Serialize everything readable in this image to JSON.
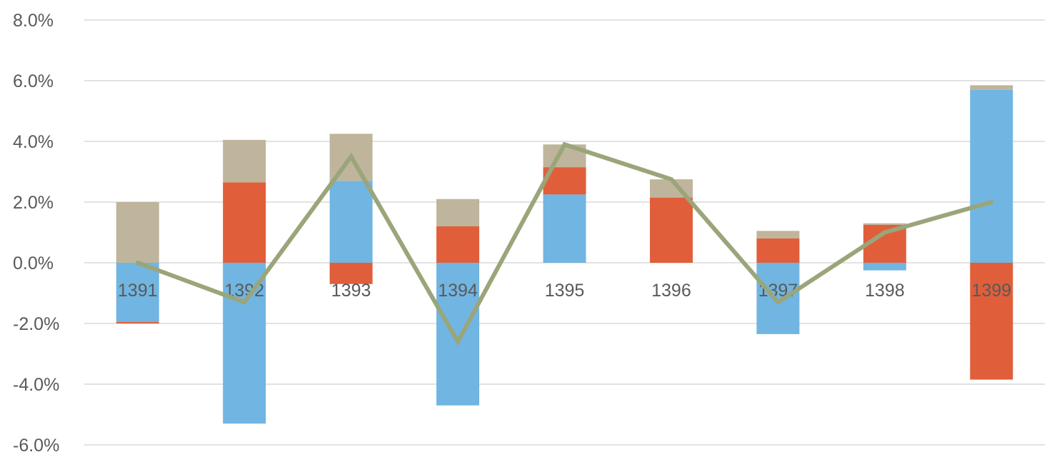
{
  "chart_data": {
    "type": "bar",
    "stacked": true,
    "categories": [
      "1391",
      "1392",
      "1393",
      "1394",
      "1395",
      "1396",
      "1397",
      "1398",
      "1399"
    ],
    "ylim": [
      -6.0,
      8.0
    ],
    "yticks": [
      -6.0,
      -4.0,
      -2.0,
      0.0,
      2.0,
      4.0,
      6.0,
      8.0
    ],
    "ytick_labels": [
      "-6.0%",
      "-4.0%",
      "-2.0%",
      "0.0%",
      "2.0%",
      "4.0%",
      "6.0%",
      "8.0%"
    ],
    "grid": true,
    "legend": "none",
    "series": [
      {
        "color": "#71b5e2",
        "values": [
          -1.95,
          -5.3,
          2.7,
          -4.7,
          2.25,
          0.0,
          -2.35,
          -0.25,
          5.7
        ]
      },
      {
        "color": "#e05f3a",
        "values": [
          -0.05,
          2.65,
          -0.7,
          1.2,
          0.9,
          2.15,
          0.8,
          1.25,
          -3.85
        ]
      },
      {
        "color": "#bfb59c",
        "values": [
          2.0,
          1.4,
          1.55,
          0.9,
          0.75,
          0.6,
          0.25,
          0.05,
          0.15
        ]
      }
    ],
    "line": {
      "color": "#9aa57a",
      "values": [
        0.0,
        -1.3,
        3.5,
        -2.6,
        3.9,
        2.75,
        -1.3,
        1.0,
        2.0
      ]
    }
  }
}
